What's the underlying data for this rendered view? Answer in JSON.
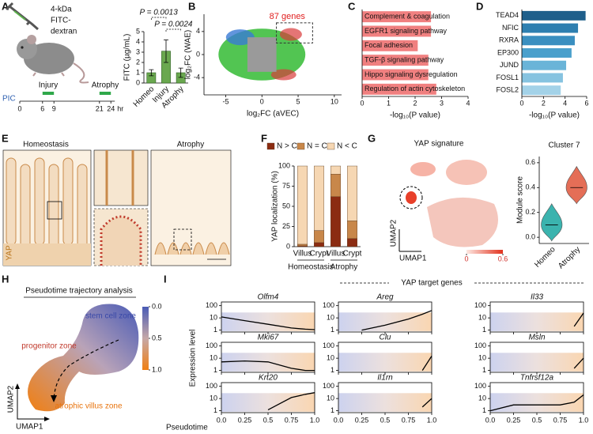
{
  "panels": {
    "letters": [
      "A",
      "B",
      "C",
      "D",
      "E",
      "F",
      "G",
      "H",
      "I"
    ],
    "A": {
      "label_lines": [
        "4-kDa",
        "FITC-",
        "dextran"
      ],
      "timeline": {
        "start_label": "PIC",
        "phases": [
          "Injury",
          "Atrophy"
        ],
        "ticks": [
          0,
          6,
          9,
          21,
          24
        ],
        "unit": "hr"
      }
    },
    "E": {
      "titles": [
        "Homeostasis",
        "Atrophy"
      ],
      "stain": "YAP"
    },
    "G": {
      "title": "YAP signature",
      "xlabel": "UMAP1",
      "ylabel": "UMAP2",
      "colorbar_ticks": [
        0,
        0.6
      ]
    },
    "H": {
      "title": "Pseudotime trajectory analysis",
      "zones": [
        "stem cell zone",
        "progenitor zone",
        "atrophic villus zone"
      ],
      "xlabel": "UMAP1",
      "ylabel": "UMAP2",
      "colorbar_ticks": [
        {
          "value": 0,
          "label": "0.0"
        },
        0.5,
        {
          "value": 1,
          "label": "1.0"
        }
      ]
    }
  },
  "chart_data": [
    {
      "type": "bar",
      "ylabel": "FITC (µg/mL)",
      "categories": [
        "Homeo",
        "Injury",
        "Atrophy"
      ],
      "values": [
        1.0,
        3.1,
        1.0
      ],
      "errors": [
        0.3,
        1.1,
        0.45
      ],
      "color": "#6aa84f",
      "ylim": [
        0,
        5
      ],
      "yticks": [
        0,
        1,
        2,
        3,
        4,
        5
      ],
      "annotations": [
        "P = 0.0013",
        "P = 0.0024"
      ]
    },
    {
      "type": "scatter",
      "xlabel": "log₂FC (aVEC)",
      "ylabel": "log₂FC (WAE)",
      "xlim": [
        -8,
        11
      ],
      "ylim": [
        -7,
        7
      ],
      "xticks": [
        -5,
        0,
        5,
        10
      ],
      "yticks": [
        -4,
        0,
        4
      ],
      "annotation": "87 genes"
    },
    {
      "type": "hbar",
      "categories": [
        "Complement & coagulation",
        "EGFR1 signaling pathway",
        "Focal adhesion",
        "TGF-β signaling pathway",
        "Hippo signaling dysregulation",
        "Regulation of actin cytoskeleton"
      ],
      "values": [
        2.6,
        2.6,
        2.1,
        2.5,
        2.5,
        2.8
      ],
      "color": "#f08080",
      "xlim": [
        0,
        4
      ],
      "xticks": [
        0,
        1,
        2,
        3,
        4
      ],
      "xlabel": "-log₁₀(P value)"
    },
    {
      "type": "hbar",
      "categories": [
        "TEAD4",
        "NFIC",
        "RXRA",
        "EP300",
        "JUND",
        "FOSL1",
        "FOSL2"
      ],
      "values": [
        5.9,
        5.2,
        4.9,
        4.6,
        4.1,
        3.8,
        3.6
      ],
      "colors": [
        "#1f5f8b",
        "#2e7fb0",
        "#3a8fc0",
        "#4aa0cc",
        "#6ab4d8",
        "#86c3e0",
        "#a3d2e8"
      ],
      "xlim": [
        0,
        6
      ],
      "xticks": [
        0,
        2,
        4,
        6
      ],
      "xlabel": "-log₁₀(P value)"
    },
    {
      "type": "stacked_bar",
      "ylabel": "YAP localization (%)",
      "categories": [
        "Villus",
        "Crypt",
        "Villus",
        "Crypt"
      ],
      "groups": [
        "Homeostasis",
        "Atrophy"
      ],
      "ylim": [
        0,
        100
      ],
      "yticks": [
        0,
        25,
        50,
        75,
        100
      ],
      "series": [
        {
          "name": "N > C",
          "color": "#8b2c12",
          "values": [
            1,
            5,
            62,
            10
          ]
        },
        {
          "name": "N = C",
          "color": "#c8874a",
          "values": [
            2,
            15,
            28,
            22
          ]
        },
        {
          "name": "N < C",
          "color": "#f6d7b3",
          "values": [
            97,
            80,
            10,
            68
          ]
        }
      ]
    },
    {
      "type": "violin",
      "title": "Cluster 7",
      "ylabel": "Module score",
      "categories": [
        "Homeo",
        "Atrophy"
      ],
      "values": [
        0.1,
        0.4
      ],
      "colors": [
        "#1aa6a0",
        "#e0553a"
      ],
      "ylim": [
        -0.05,
        0.65
      ],
      "yticks": [
        {
          "value": 0,
          "label": "0.0"
        },
        0.2,
        0.4,
        0.6
      ]
    },
    {
      "type": "line",
      "group_title": "YAP target genes",
      "ylabel": "Expression level",
      "xlabel": "Pseudotime",
      "x": [
        0,
        0.25,
        0.5,
        0.75,
        0.9,
        1.0
      ],
      "xlim": [
        0,
        1
      ],
      "xticks": [
        {
          "value": 0,
          "label": "0.0"
        },
        0.25,
        0.5,
        0.75,
        {
          "value": 1,
          "label": "1.0"
        }
      ],
      "yscale": "log",
      "ylim": [
        0.7,
        200
      ],
      "yticks": [
        1,
        10,
        100
      ],
      "color": "#000000",
      "series": [
        {
          "name": "Olfm4",
          "values": [
            12,
            6,
            3,
            1.5,
            1.2,
            1.1
          ]
        },
        {
          "name": "Mki67",
          "values": [
            5,
            6,
            5,
            1.5,
            1,
            1
          ]
        },
        {
          "name": "Krt20",
          "values": [
            null,
            null,
            1.2,
            12,
            22,
            30
          ]
        },
        {
          "name": "Areg",
          "values": [
            null,
            1,
            2.5,
            8,
            20,
            40
          ]
        },
        {
          "name": "Clu",
          "values": [
            null,
            null,
            null,
            null,
            1,
            15
          ]
        },
        {
          "name": "Il1rn",
          "values": [
            null,
            null,
            null,
            null,
            2,
            10
          ]
        },
        {
          "name": "Il33",
          "values": [
            null,
            null,
            null,
            null,
            2,
            25
          ]
        },
        {
          "name": "Msln",
          "values": [
            null,
            null,
            null,
            null,
            1.5,
            10
          ]
        },
        {
          "name": "Tnfrsf12a",
          "values": [
            1,
            3,
            3,
            3,
            5,
            20
          ]
        }
      ]
    }
  ]
}
